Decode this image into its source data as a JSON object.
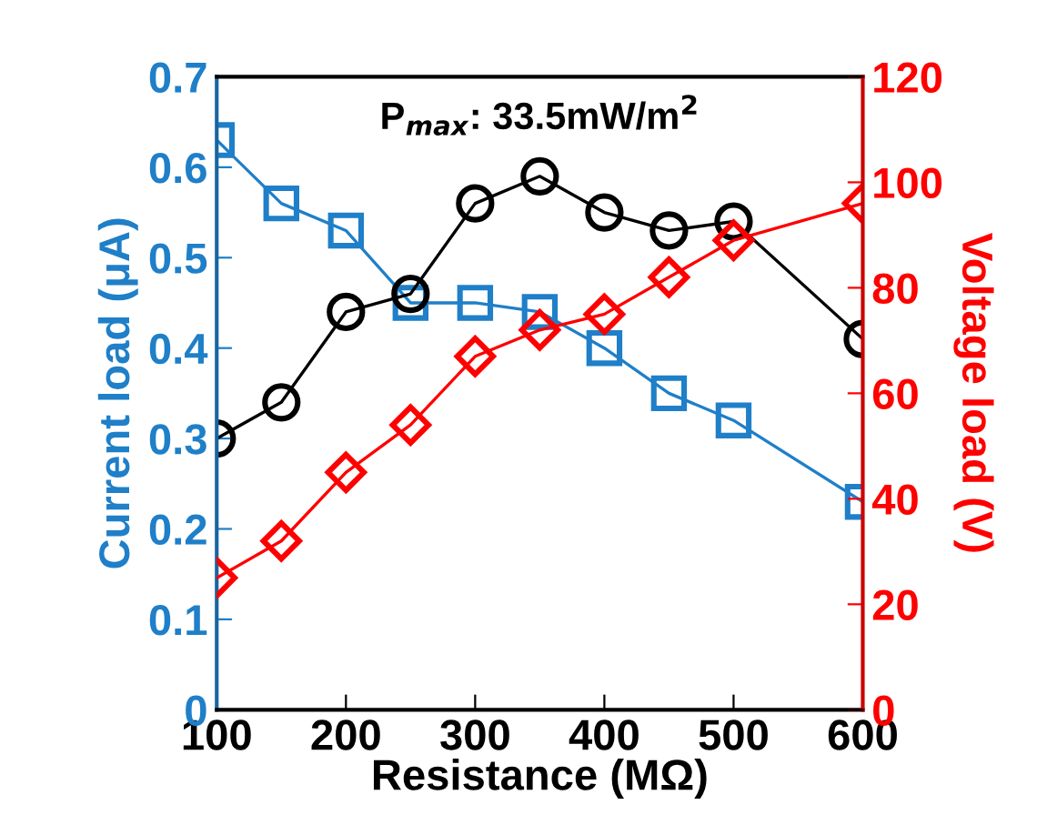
{
  "chart_data": {
    "type": "line",
    "xlabel": "Resistance (MΩ)",
    "ylabel": "Current load (μA)",
    "y2label": "Voltage load (V)",
    "annotations": [
      "P$_{max}$: 33.5mW/m$^{2}$"
    ],
    "x": [
      100,
      150,
      200,
      250,
      300,
      350,
      400,
      450,
      500,
      600
    ],
    "xlim": [
      100,
      600
    ],
    "xticks": [
      100,
      200,
      300,
      400,
      500,
      600
    ],
    "ylim": [
      0,
      0.7
    ],
    "yticks": [
      0,
      0.1,
      0.2,
      0.3,
      0.4,
      0.5,
      0.6,
      0.7
    ],
    "y2lim": [
      0,
      120
    ],
    "y2ticks": [
      0,
      20,
      40,
      60,
      80,
      100,
      120
    ],
    "grid": false,
    "legend": false,
    "line_style": "solid",
    "series": [
      {
        "color": "#1f7fc8",
        "marker": "square",
        "axis": "y",
        "values": [
          0.63,
          0.56,
          0.53,
          0.45,
          0.45,
          0.44,
          0.4,
          0.35,
          0.32,
          0.23
        ]
      },
      {
        "color": "#000000",
        "marker": "circle",
        "axis": "y",
        "values": [
          0.3,
          0.34,
          0.44,
          0.46,
          0.56,
          0.59,
          0.55,
          0.53,
          0.54,
          0.41
        ]
      },
      {
        "color": "#ff0000",
        "marker": "diamond",
        "axis": "y2",
        "values": [
          25,
          32,
          45,
          54,
          67,
          72,
          75,
          82,
          89,
          96
        ]
      }
    ]
  }
}
